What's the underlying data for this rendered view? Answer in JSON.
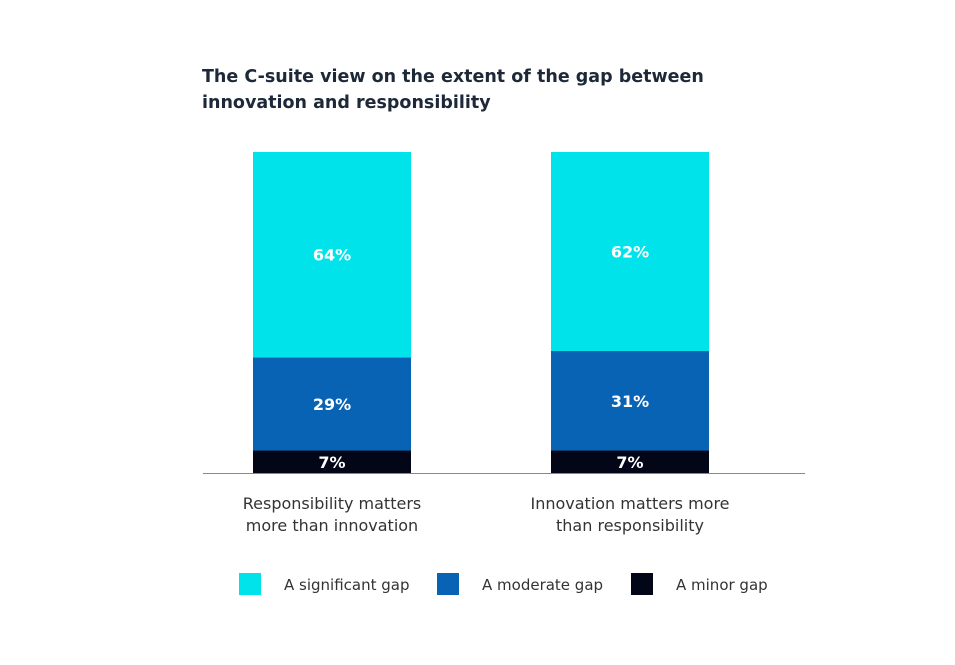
{
  "chart_data": {
    "type": "bar",
    "stacked": true,
    "title": "The C-suite view on the extent of the gap between innovation and responsibility",
    "categories": [
      [
        "Responsibility matters",
        "more than innovation"
      ],
      [
        "Innovation matters more",
        "than responsibility"
      ]
    ],
    "series": [
      {
        "name": "A minor gap",
        "color": "#020617",
        "values": [
          7,
          7
        ],
        "labels": [
          "7%",
          "7%"
        ]
      },
      {
        "name": "A moderate gap",
        "color": "#0863b5",
        "values": [
          29,
          31
        ],
        "labels": [
          "29%",
          "31%"
        ]
      },
      {
        "name": "A significant gap",
        "color": "#00e3eb",
        "values": [
          64,
          62
        ],
        "labels": [
          "64%",
          "62%"
        ]
      }
    ],
    "legend_order": [
      "A significant gap",
      "A moderate gap",
      "A minor gap"
    ],
    "ylim": [
      0,
      100
    ],
    "grid": false,
    "legend_position": "bottom",
    "xlabel": "",
    "ylabel": ""
  }
}
